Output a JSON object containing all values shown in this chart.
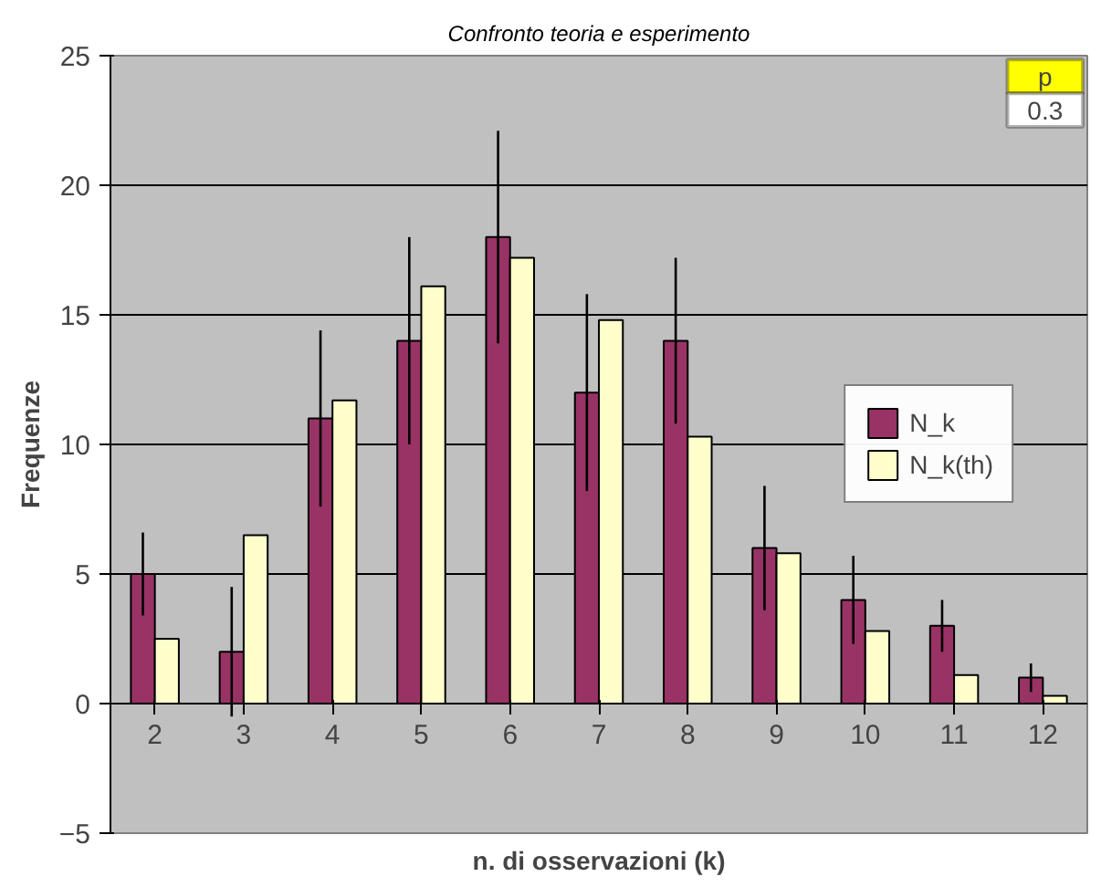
{
  "chart_data": {
    "type": "bar",
    "title": "Confronto teoria e esperimento",
    "xlabel": "n. di osservazioni (k)",
    "ylabel": "Frequenze",
    "categories": [
      "2",
      "3",
      "4",
      "5",
      "6",
      "7",
      "8",
      "9",
      "10",
      "11",
      "12"
    ],
    "series": [
      {
        "name": "N_k",
        "color": "#993366",
        "values": [
          5,
          2,
          11,
          14,
          18,
          12,
          14,
          6,
          4,
          3,
          1
        ],
        "errors": [
          1.6,
          2.5,
          3.4,
          4.0,
          4.1,
          3.8,
          3.2,
          2.4,
          1.7,
          1.0,
          0.55
        ]
      },
      {
        "name": "N_k(th)",
        "color": "#ffffcc",
        "values": [
          2.5,
          6.5,
          11.7,
          16.1,
          17.2,
          14.8,
          10.3,
          5.8,
          2.8,
          1.1,
          0.3
        ]
      }
    ],
    "ylim": [
      -5,
      25
    ],
    "yticks": [
      -5,
      0,
      5,
      10,
      15,
      20,
      25
    ],
    "grid": "y",
    "legend": "right",
    "annotations": [
      "p",
      "0.3"
    ]
  }
}
